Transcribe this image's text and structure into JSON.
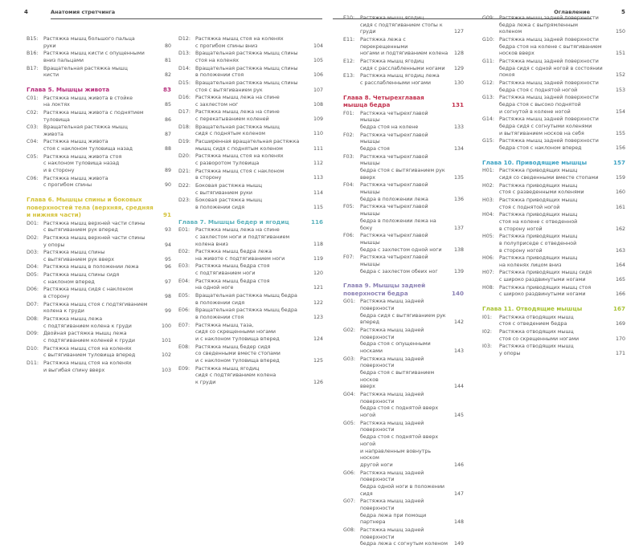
{
  "header": {
    "left_page_number": "4",
    "left_title": "Анатомия стретчинга",
    "right_title": "Оглавление",
    "right_page_number": "5"
  },
  "columns": [
    [
      {
        "code": "B15:",
        "lines": [
          "Растяжка мышц большого пальца",
          "руки"
        ],
        "page": "80"
      },
      {
        "code": "B16:",
        "lines": [
          "Растяжка мышц кисти с опущенными",
          "вниз пальцами"
        ],
        "page": "81"
      },
      {
        "code": "B17:",
        "lines": [
          "Вращательная растяжка мышц",
          "кисти"
        ],
        "page": "82"
      },
      {
        "chapter": "Глава 5. Мышцы живота",
        "page": "83",
        "color": "#b5307c"
      },
      {
        "code": "C01:",
        "lines": [
          "Растяжка мышц живота в стойке",
          "на локтях"
        ],
        "page": "85"
      },
      {
        "code": "C02:",
        "lines": [
          "Растяжка мышц живота с поднятием",
          "туловища"
        ],
        "page": "86"
      },
      {
        "code": "C03:",
        "lines": [
          "Вращательная растяжка мышц",
          "живота"
        ],
        "page": "87"
      },
      {
        "code": "C04:",
        "lines": [
          "Растяжка мышц живота",
          "стоя с наклоном туловища назад"
        ],
        "page": "88"
      },
      {
        "code": "C05:",
        "lines": [
          "Растяжка мышц живота стоя",
          "с наклоном туловища назад",
          "и в сторону"
        ],
        "page": "89"
      },
      {
        "code": "C06:",
        "lines": [
          "Растяжка мышц живота",
          "с прогибом спины"
        ],
        "page": "90"
      },
      {
        "chapter": "Глава 6. Мышцы спины и боковых поверхностей тела (верхняя, средняя и нижняя части)",
        "page": "91",
        "color": "#d4c23a"
      },
      {
        "code": "D01:",
        "lines": [
          "Растяжка мышц верхней части спины",
          "с вытягиванием рук вперед"
        ],
        "page": "93"
      },
      {
        "code": "D02:",
        "lines": [
          "Растяжка мышц верхней части спины",
          "у опоры"
        ],
        "page": "94"
      },
      {
        "code": "D03:",
        "lines": [
          "Растяжка мышц спины",
          "с вытягиванием рук вверх"
        ],
        "page": "95"
      },
      {
        "code": "D04:",
        "lines": [
          "Растяжка мышц в положении лежа"
        ],
        "page": "96"
      },
      {
        "code": "D05:",
        "lines": [
          "Растяжка мышц спины сидя",
          "с наклоном вперед"
        ],
        "page": "97"
      },
      {
        "code": "D06:",
        "lines": [
          "Растяжка мышц сидя с наклоном",
          "в сторону"
        ],
        "page": "98"
      },
      {
        "code": "D07:",
        "lines": [
          "Растяжка мышц стоя с подтягиванием",
          "колена к груди"
        ],
        "page": "99"
      },
      {
        "code": "D08:",
        "lines": [
          "Растяжка мышц лежа",
          "с подтягиванием колена к груди"
        ],
        "page": "100"
      },
      {
        "code": "D09:",
        "lines": [
          "Двойная растяжка мышц лежа",
          "с подтягиванием коленей к груди"
        ],
        "page": "101"
      },
      {
        "code": "D10:",
        "lines": [
          "Растяжка мышц стоя на коленях",
          "с вытягиванием туловища вперед"
        ],
        "page": "102"
      },
      {
        "code": "D11:",
        "lines": [
          "Растяжка мышц стоя на коленях",
          "и выгибая спину вверх"
        ],
        "page": "103"
      }
    ],
    [
      {
        "code": "D12:",
        "lines": [
          "Растяжка мышц стоя на коленях",
          "с прогибом спины вниз"
        ],
        "page": "104"
      },
      {
        "code": "D13:",
        "lines": [
          "Вращательная растяжка мышц спины",
          "стоя на коленях"
        ],
        "page": "105"
      },
      {
        "code": "D14:",
        "lines": [
          "Вращательная растяжка мышц спины",
          "в положении стоя"
        ],
        "page": "106"
      },
      {
        "code": "D15:",
        "lines": [
          "Вращательная растяжка мышц спины",
          "стоя с вытягиванием рук"
        ],
        "page": "107"
      },
      {
        "code": "D16:",
        "lines": [
          "Растяжка мышц лежа на спине",
          "с захлестом ног"
        ],
        "page": "108"
      },
      {
        "code": "D17:",
        "lines": [
          "Растяжка мышц лежа на спине",
          "с перекатыванием коленей"
        ],
        "page": "109"
      },
      {
        "code": "D18:",
        "lines": [
          "Вращательная растяжка мышц",
          "сидя с поднятым коленом"
        ],
        "page": "110"
      },
      {
        "code": "D19:",
        "lines": [
          "Расширенная вращательная растяжка",
          "мышц сидя с поднятым коленом"
        ],
        "page": "111"
      },
      {
        "code": "D20:",
        "lines": [
          "Растяжка мышц стоя на коленях",
          "с разворотом туловища"
        ],
        "page": "112"
      },
      {
        "code": "D21:",
        "lines": [
          "Растяжка мышц стоя с наклоном",
          "в сторону"
        ],
        "page": "113"
      },
      {
        "code": "D22:",
        "lines": [
          "Боковая растяжка мышц",
          "с вытягиванием руки"
        ],
        "page": "114"
      },
      {
        "code": "D23:",
        "lines": [
          "Боковая растяжка мышц",
          "в положении сидя"
        ],
        "page": "115"
      },
      {
        "chapter": "Глава 7. Мышцы бедер и ягодиц",
        "page": "116",
        "color": "#5fb3bd"
      },
      {
        "code": "E01:",
        "lines": [
          "Растяжка мышц лежа на спине",
          "с захлестом ноги и подтягиванием",
          "колена вниз"
        ],
        "page": "118"
      },
      {
        "code": "E02:",
        "lines": [
          "Растяжка мышц бедра лежа",
          "на животе с подтягиванием ноги"
        ],
        "page": "119"
      },
      {
        "code": "E03:",
        "lines": [
          "Растяжка мышц бедра стоя",
          "с подтягиванием ноги"
        ],
        "page": "120"
      },
      {
        "code": "E04:",
        "lines": [
          "Растяжка мышц бедра стоя",
          "на одной ноге"
        ],
        "page": "121"
      },
      {
        "code": "E05:",
        "lines": [
          "Вращательная растяжка мышц бедра",
          "в положении сидя"
        ],
        "page": "122"
      },
      {
        "code": "E06:",
        "lines": [
          "Вращательная растяжка мышц бедра",
          "в положении стоя"
        ],
        "page": "123"
      },
      {
        "code": "E07:",
        "lines": [
          "Растяжка мышц таза,",
          "сидя со скрещенными ногами",
          "и с наклоном туловища вперед"
        ],
        "page": "124"
      },
      {
        "code": "E08:",
        "lines": [
          "Растяжка мышц бедер сидя",
          "со сведенными вместе стопами",
          "и с наклоном туловища вперед"
        ],
        "page": "125"
      },
      {
        "code": "E09:",
        "lines": [
          "Растяжка мышц ягодиц",
          "сидя с подтягиванием колена",
          "к груди"
        ],
        "page": "126"
      }
    ],
    [
      {
        "code": "E10:",
        "lines": [
          "Растяжка мышц ягодиц",
          "сидя с подтягиванием стопы к груди"
        ],
        "page": "127"
      },
      {
        "code": "E11:",
        "lines": [
          "Растяжка лежа с перекрещенными",
          "ногами и подтягиванием колена"
        ],
        "page": "128"
      },
      {
        "code": "E12:",
        "lines": [
          "Растяжка мышц ягодиц",
          "сидя с расслабленными ногами"
        ],
        "page": "129"
      },
      {
        "code": "E13:",
        "lines": [
          "Растяжка мышц ягодиц лежа",
          "с расслабленными ногами"
        ],
        "page": "130"
      },
      {
        "chapter": "Глава 8. Четырехглавая мышца бедра",
        "page": "131",
        "color": "#c2324e"
      },
      {
        "code": "F01:",
        "lines": [
          "Растяжка четырехглавой мышцы",
          "бедра стоя на колене"
        ],
        "page": "133"
      },
      {
        "code": "F02:",
        "lines": [
          "Растяжка четырехглавой мышцы",
          "бедра стоя"
        ],
        "page": "134"
      },
      {
        "code": "F03:",
        "lines": [
          "Растяжка четырехглавой мышцы",
          "бедра стоя с вытягиванием рук вверх"
        ],
        "page": "135"
      },
      {
        "code": "F04:",
        "lines": [
          "Растяжка четырехглавой мышцы",
          "бедра в положении лежа"
        ],
        "page": "136"
      },
      {
        "code": "F05:",
        "lines": [
          "Растяжка четырехглавой мышцы",
          "бедра в положении лежа на боку"
        ],
        "page": "137"
      },
      {
        "code": "F06:",
        "lines": [
          "Растяжка четырехглавой мышцы",
          "бедра с захлестом одной ноги"
        ],
        "page": "138"
      },
      {
        "code": "F07:",
        "lines": [
          "Растяжка четырехглавой мышцы",
          "бедра с захлестом обеих ног"
        ],
        "page": "139"
      },
      {
        "chapter": "Глава 9. Мышцы задней поверхности бедра",
        "page": "140",
        "color": "#8c82b4"
      },
      {
        "code": "G01:",
        "lines": [
          "Растяжка мышц задней поверхности",
          "бедра сидя с вытягиванием рук",
          "вперед"
        ],
        "page": "142"
      },
      {
        "code": "G02:",
        "lines": [
          "Растяжка мышц задней поверхности",
          "бедра стоя с опущенными носками"
        ],
        "page": "143"
      },
      {
        "code": "G03:",
        "lines": [
          "Растяжка мышц задней поверхности",
          "бедра стоя с вытягиванием носков",
          "вверх"
        ],
        "page": "144"
      },
      {
        "code": "G04:",
        "lines": [
          "Растяжка мышц задней поверхности",
          "бедра стоя с поднятой вверх ногой"
        ],
        "page": "145"
      },
      {
        "code": "G05:",
        "lines": [
          "Растяжка мышц задней поверхности",
          "бедра стоя с поднятой вверх ногой",
          "и направленным вовнутрь носком",
          "другой ноги"
        ],
        "page": "146"
      },
      {
        "code": "G06:",
        "lines": [
          "Растяжка мышц задней поверхности",
          "бедра одной ноги в положении сидя"
        ],
        "page": "147"
      },
      {
        "code": "G07:",
        "lines": [
          "Растяжка мышц задней поверхности",
          "бедра лежа при помощи партнера"
        ],
        "page": "148"
      },
      {
        "code": "G08:",
        "lines": [
          "Растяжка мышц задней поверхности",
          "бедра лежа с согнутым коленом"
        ],
        "page": "149"
      }
    ],
    [
      {
        "code": "G09:",
        "lines": [
          "Растяжка мышц задней поверхности",
          "бедра лежа с выпрямленным",
          "коленом"
        ],
        "page": "150"
      },
      {
        "code": "G10:",
        "lines": [
          "Растяжка мышц задней поверхности",
          "бедра стоя на колене с вытягиванием",
          "носков вверх"
        ],
        "page": "151"
      },
      {
        "code": "G11:",
        "lines": [
          "Растяжка мышц задней поверхности",
          "бедра сидя с одной ногой в состоянии",
          "покоя"
        ],
        "page": "152"
      },
      {
        "code": "G12:",
        "lines": [
          "Растяжка мышц задней поверхности",
          "бедра стоя с поднятой ногой"
        ],
        "page": "153"
      },
      {
        "code": "G13:",
        "lines": [
          "Растяжка мышц задней поверхности",
          "бедра стоя с высоко поднятой",
          "и согнутой в колене ногой"
        ],
        "page": "154"
      },
      {
        "code": "G14:",
        "lines": [
          "Растяжка мышц задней поверхности",
          "бедра сидя с согнутыми коленями",
          "и вытягиванием носков на себя"
        ],
        "page": "155"
      },
      {
        "code": "G15:",
        "lines": [
          "Растяжка мышц задней поверхности",
          "бедра стоя с наклоном вперед"
        ],
        "page": "156"
      },
      {
        "chapter": "Глава 10. Приводящие мышцы",
        "page": "157",
        "color": "#3fa3c4"
      },
      {
        "code": "H01:",
        "lines": [
          "Растяжка приводящих мышц",
          "сидя со сведенными вместе стопами"
        ],
        "page": "159"
      },
      {
        "code": "H02:",
        "lines": [
          "Растяжка приводящих мышц",
          "стоя с разведенными коленями"
        ],
        "page": "160"
      },
      {
        "code": "H03:",
        "lines": [
          "Растяжка приводящих мышц",
          "стоя с поднятой ногой"
        ],
        "page": "161"
      },
      {
        "code": "H04:",
        "lines": [
          "Растяжка приводящих мышц",
          "стоя на колене с отведенной",
          "в сторону ногой"
        ],
        "page": "162"
      },
      {
        "code": "H05:",
        "lines": [
          "Растяжка приводящих мышц",
          "в полуприседе с отведенной",
          "в сторону ногой"
        ],
        "page": "163"
      },
      {
        "code": "H06:",
        "lines": [
          "Растяжка приводящих мышц",
          "на коленях лицом вниз"
        ],
        "page": "164"
      },
      {
        "code": "H07:",
        "lines": [
          "Растяжка приводящих мышц сидя",
          "с широко раздвинутыми ногами"
        ],
        "page": "165"
      },
      {
        "code": "H08:",
        "lines": [
          "Растяжка приводящих мышц стоя",
          "с широко раздвинутыми ногами"
        ],
        "page": "166"
      },
      {
        "chapter": "Глава 11. Отводящие мышцы",
        "page": "167",
        "color": "#a9c236"
      },
      {
        "code": "I01:",
        "lines": [
          "Растяжка отводящих мышц",
          "стоя с отведением бедра"
        ],
        "page": "169"
      },
      {
        "code": "I02:",
        "lines": [
          "Растяжка отводящих мышц",
          "стоя со скрещенными ногами"
        ],
        "page": "170"
      },
      {
        "code": "I03:",
        "lines": [
          "Растяжка отводящих мышц",
          "у опоры"
        ],
        "page": "171"
      }
    ]
  ]
}
